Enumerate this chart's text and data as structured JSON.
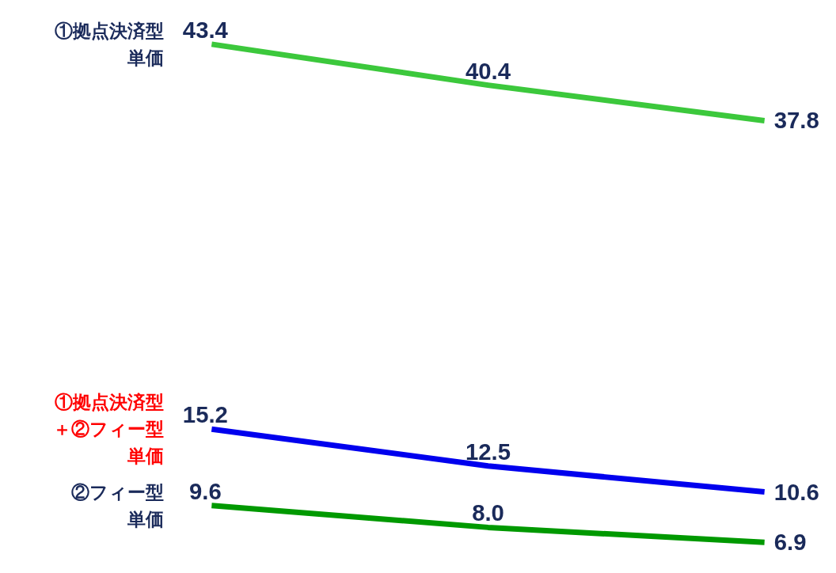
{
  "chart_data": {
    "type": "line",
    "categories": [
      null,
      null,
      null
    ],
    "grid": false,
    "series": [
      {
        "name": "①拠点決済型単価",
        "color": "#3cc83c",
        "values": [
          43.4,
          40.4,
          37.8
        ],
        "value_labels": [
          "43.4",
          "40.4",
          "37.8"
        ]
      },
      {
        "name": "①拠点決済型＋②フィー型単価",
        "color": "#0000ee",
        "values": [
          15.2,
          12.5,
          10.6
        ],
        "value_labels": [
          "15.2",
          "12.5",
          "10.6"
        ]
      },
      {
        "name": "②フィー型単価",
        "color": "#009900",
        "values": [
          9.6,
          8.0,
          6.9
        ],
        "value_labels": [
          "9.6",
          "8.0",
          "6.9"
        ]
      }
    ]
  }
}
